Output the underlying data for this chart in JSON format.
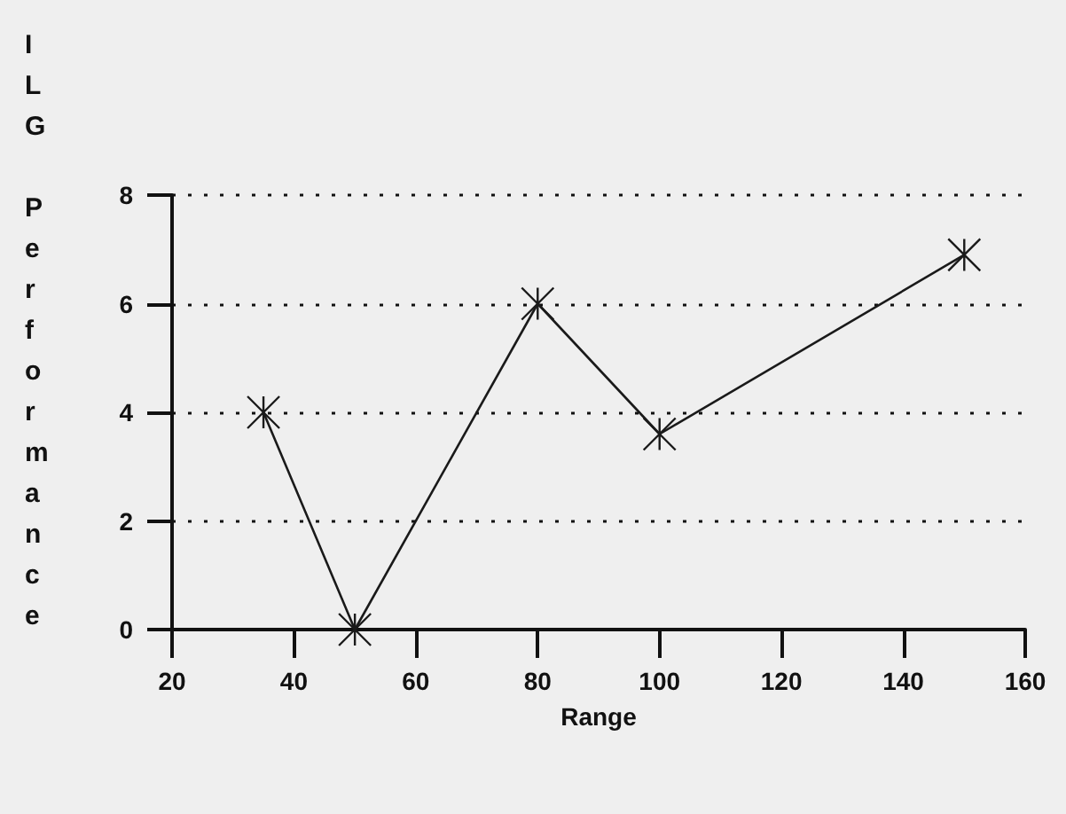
{
  "chart_data": {
    "type": "line",
    "xlabel": "Range",
    "ylabel": "ILG Performance",
    "x": [
      35,
      50,
      80,
      100,
      150
    ],
    "series": [
      {
        "color": "#1a1a1a",
        "values": [
          4,
          0,
          6,
          3.6,
          6.9
        ]
      }
    ],
    "xlim": [
      20,
      160
    ],
    "xticks": [
      20,
      40,
      60,
      80,
      100,
      120,
      140,
      160
    ],
    "ylim": [
      0,
      8
    ],
    "yticks": [
      0,
      2,
      4,
      6,
      8
    ],
    "grid": "y",
    "marker": "cross",
    "line_style": "solid"
  }
}
